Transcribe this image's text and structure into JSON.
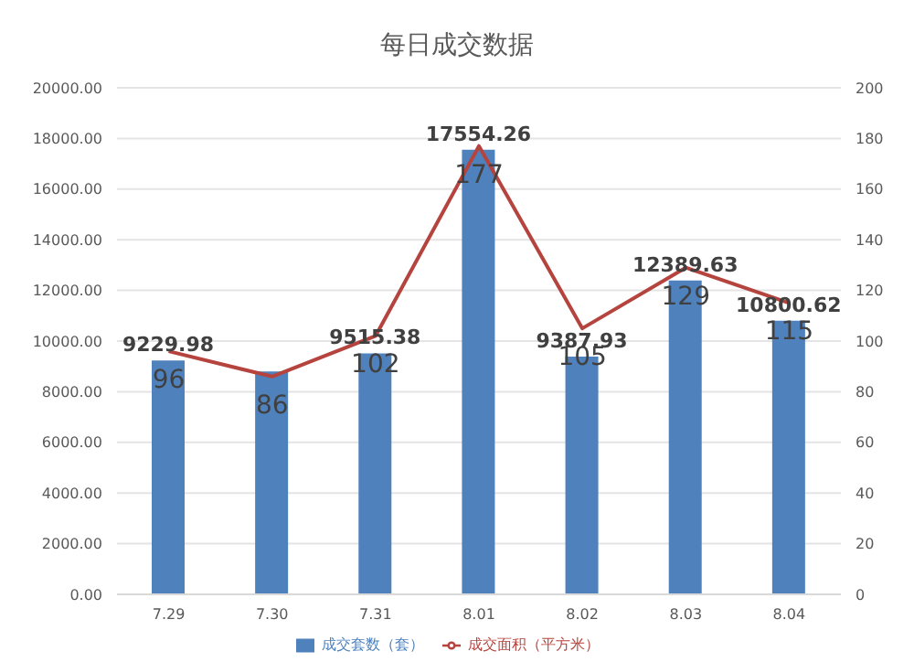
{
  "chart_data": {
    "type": "bar",
    "title": "每日成交数据",
    "categories": [
      "7.29",
      "7.30",
      "7.31",
      "8.01",
      "8.02",
      "8.03",
      "8.04"
    ],
    "series": [
      {
        "name": "成交套数（套）",
        "color": "#4f81bd",
        "values": [
          9229.98,
          8800,
          9515.38,
          17554.26,
          9387.93,
          12389.63,
          10800.62
        ],
        "value_labels": [
          "9229.98",
          null,
          "9515.38",
          "17554.26",
          "9387.93",
          "12389.63",
          "10800.62"
        ]
      },
      {
        "name": "成交面积（平方米）",
        "type": "line",
        "axis": "y2",
        "color": "#b5443f",
        "values": [
          96,
          86,
          102,
          177,
          105,
          129,
          115
        ],
        "value_labels": [
          "96",
          "86",
          "102",
          "177",
          "105",
          "129",
          "115"
        ]
      }
    ],
    "ylim": [
      0,
      20000
    ],
    "yticks": [
      {
        "value": 0,
        "label": "0.00"
      },
      {
        "value": 2000,
        "label": "2000.00"
      },
      {
        "value": 4000,
        "label": "4000.00"
      },
      {
        "value": 6000,
        "label": "6000.00"
      },
      {
        "value": 8000,
        "label": "8000.00"
      },
      {
        "value": 10000,
        "label": "10000.00"
      },
      {
        "value": 12000,
        "label": "12000.00"
      },
      {
        "value": 14000,
        "label": "14000.00"
      },
      {
        "value": 16000,
        "label": "16000.00"
      },
      {
        "value": 18000,
        "label": "18000.00"
      },
      {
        "value": 20000,
        "label": "20000.00"
      }
    ],
    "y2lim": [
      0,
      200
    ],
    "y2ticks": [
      0,
      20,
      40,
      60,
      80,
      100,
      120,
      140,
      160,
      180,
      200
    ],
    "grid": "y",
    "legend": "bottom",
    "marker": "none"
  }
}
